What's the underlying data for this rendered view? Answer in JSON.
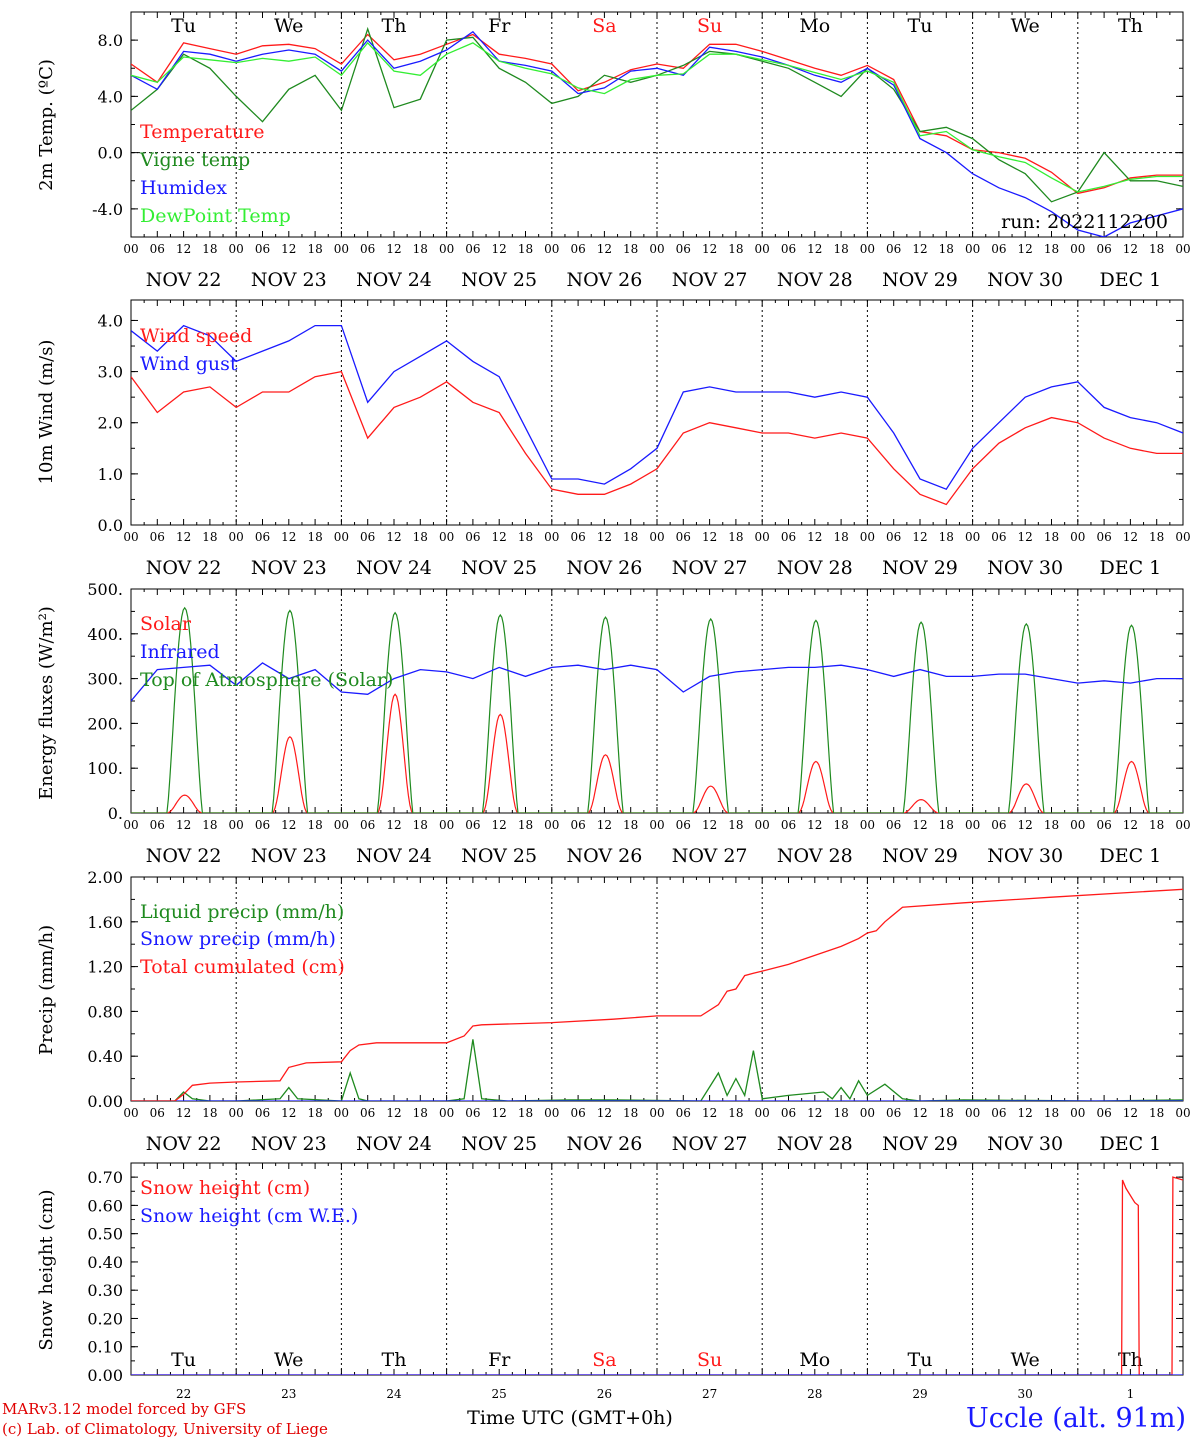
{
  "days": {
    "weekdays": [
      "Tu",
      "We",
      "Th",
      "Fr",
      "Sa",
      "Su",
      "Mo",
      "Tu",
      "We",
      "Th"
    ],
    "weekend_flags": [
      false,
      false,
      false,
      false,
      true,
      true,
      false,
      false,
      false,
      false
    ],
    "dates": [
      "NOV 22",
      "NOV 23",
      "NOV 24",
      "NOV 25",
      "NOV 26",
      "NOV 27",
      "NOV 28",
      "NOV 29",
      "NOV 30",
      "DEC  1"
    ],
    "day_numbers": [
      "22",
      "23",
      "24",
      "25",
      "26",
      "27",
      "28",
      "29",
      "30",
      "1"
    ],
    "hour_labels": [
      "00",
      "06",
      "12",
      "18"
    ],
    "final_hour_label": "00"
  },
  "colors": {
    "red": "#ff1a1a",
    "green": "#1f8a1f",
    "blue": "#1a1aff",
    "lightgreen": "#33ee33"
  },
  "footer": {
    "xlabel": "Time UTC (GMT+0h)",
    "credit_line1": "MARv3.12 model forced by GFS",
    "credit_line2": "(c) Lab. of Climatology, University of Liege",
    "station": "Uccle (alt. 91m)"
  },
  "chart_data": [
    {
      "type": "line",
      "title": "",
      "ylabel": "2m Temp. (ºC)",
      "xlabel": "",
      "ylim": [
        -6.0,
        10.0
      ],
      "yticks": [
        -4.0,
        0.0,
        4.0,
        8.0
      ],
      "ytick_labels": [
        "-4.0",
        "0.0",
        "4.0",
        "8.0"
      ],
      "zero_line": true,
      "grid": "vertical dotted lines at day boundaries",
      "x_unit": "hours since 2022-11-22 00 UTC",
      "xlim": [
        0,
        240
      ],
      "annotation": "run: 2022112200",
      "legend_position": "left",
      "series": [
        {
          "name": "Temperature",
          "color": "red",
          "x": [
            0,
            6,
            12,
            18,
            24,
            30,
            36,
            42,
            48,
            54,
            60,
            66,
            72,
            78,
            84,
            90,
            96,
            102,
            108,
            114,
            120,
            126,
            132,
            138,
            144,
            150,
            156,
            162,
            168,
            174,
            180,
            186,
            192,
            198,
            204,
            210,
            216,
            222,
            228,
            234,
            240
          ],
          "y": [
            6.3,
            5.0,
            7.8,
            7.4,
            7.0,
            7.6,
            7.7,
            7.4,
            6.3,
            8.4,
            6.6,
            7.0,
            7.7,
            8.4,
            7.0,
            6.7,
            6.3,
            4.4,
            5.0,
            5.9,
            6.3,
            6.0,
            7.7,
            7.7,
            7.2,
            6.6,
            6.0,
            5.5,
            6.2,
            5.2,
            1.5,
            1.2,
            0.2,
            0.0,
            -0.4,
            -1.4,
            -2.9,
            -2.5,
            -1.8,
            -1.6,
            -1.6
          ]
        },
        {
          "name": "Vigne temp",
          "color": "green",
          "x": [
            0,
            6,
            12,
            18,
            24,
            30,
            36,
            42,
            48,
            54,
            60,
            66,
            72,
            78,
            84,
            90,
            96,
            102,
            108,
            114,
            120,
            126,
            132,
            138,
            144,
            150,
            156,
            162,
            168,
            174,
            180,
            186,
            192,
            198,
            204,
            210,
            216,
            222,
            228,
            234,
            240
          ],
          "y": [
            3.0,
            4.5,
            7.0,
            6.0,
            4.0,
            2.2,
            4.5,
            5.5,
            3.0,
            8.8,
            3.2,
            3.8,
            8.0,
            8.2,
            6.0,
            5.0,
            3.5,
            4.0,
            5.5,
            5.0,
            5.5,
            6.2,
            7.2,
            7.0,
            6.5,
            6.0,
            5.0,
            4.0,
            6.0,
            4.5,
            1.5,
            1.8,
            1.0,
            -0.5,
            -1.5,
            -3.5,
            -2.8,
            0.0,
            -2.0,
            -2.0,
            -2.4
          ]
        },
        {
          "name": "Humidex",
          "color": "blue",
          "x": [
            0,
            6,
            12,
            18,
            24,
            30,
            36,
            42,
            48,
            54,
            60,
            66,
            72,
            78,
            84,
            90,
            96,
            102,
            108,
            114,
            120,
            126,
            132,
            138,
            144,
            150,
            156,
            162,
            168,
            174,
            180,
            186,
            192,
            198,
            204,
            210,
            216,
            222,
            228,
            234,
            240
          ],
          "y": [
            5.5,
            4.5,
            7.2,
            7.0,
            6.5,
            7.0,
            7.3,
            7.0,
            5.8,
            8.0,
            6.0,
            6.5,
            7.3,
            8.6,
            6.5,
            6.2,
            5.8,
            4.2,
            4.6,
            5.8,
            6.0,
            5.5,
            7.5,
            7.2,
            6.8,
            6.2,
            5.5,
            5.0,
            6.0,
            4.8,
            1.0,
            0.0,
            -1.5,
            -2.5,
            -3.2,
            -4.2,
            -5.5,
            -6.0,
            -5.0,
            -4.5,
            -4.0
          ]
        },
        {
          "name": "DewPoint Temp",
          "color": "lightgreen",
          "x": [
            0,
            6,
            12,
            18,
            24,
            30,
            36,
            42,
            48,
            54,
            60,
            66,
            72,
            78,
            84,
            90,
            96,
            102,
            108,
            114,
            120,
            126,
            132,
            138,
            144,
            150,
            156,
            162,
            168,
            174,
            180,
            186,
            192,
            198,
            204,
            210,
            216,
            222,
            228,
            234,
            240
          ],
          "y": [
            5.5,
            5.0,
            6.8,
            6.6,
            6.4,
            6.7,
            6.5,
            6.8,
            5.5,
            7.8,
            5.8,
            5.5,
            7.0,
            7.8,
            6.5,
            6.0,
            5.6,
            4.6,
            4.2,
            5.2,
            5.5,
            5.6,
            7.0,
            7.0,
            6.6,
            6.2,
            5.7,
            5.2,
            5.8,
            5.0,
            1.2,
            1.5,
            0.2,
            -0.3,
            -0.7,
            -1.8,
            -2.8,
            -2.4,
            -1.9,
            -1.7,
            -1.7
          ]
        }
      ]
    },
    {
      "type": "line",
      "title": "",
      "ylabel": "10m Wind (m/s)",
      "xlabel": "",
      "ylim": [
        0.0,
        4.4
      ],
      "yticks": [
        0.0,
        1.0,
        2.0,
        3.0,
        4.0
      ],
      "ytick_labels": [
        "0.0",
        "1.0",
        "2.0",
        "3.0",
        "4.0"
      ],
      "grid": "vertical dotted lines at day boundaries",
      "x_unit": "hours since 2022-11-22 00 UTC",
      "xlim": [
        0,
        240
      ],
      "legend_position": "left",
      "series": [
        {
          "name": "Wind speed",
          "color": "red",
          "x": [
            0,
            6,
            12,
            18,
            24,
            30,
            36,
            42,
            48,
            54,
            60,
            66,
            72,
            78,
            84,
            90,
            96,
            102,
            108,
            114,
            120,
            126,
            132,
            138,
            144,
            150,
            156,
            162,
            168,
            174,
            180,
            186,
            192,
            198,
            204,
            210,
            216,
            222,
            228,
            234,
            240
          ],
          "y": [
            2.9,
            2.2,
            2.6,
            2.7,
            2.3,
            2.6,
            2.6,
            2.9,
            3.0,
            1.7,
            2.3,
            2.5,
            2.8,
            2.4,
            2.2,
            1.4,
            0.7,
            0.6,
            0.6,
            0.8,
            1.1,
            1.8,
            2.0,
            1.9,
            1.8,
            1.8,
            1.7,
            1.8,
            1.7,
            1.1,
            0.6,
            0.4,
            1.1,
            1.6,
            1.9,
            2.1,
            2.0,
            1.7,
            1.5,
            1.4,
            1.4
          ]
        },
        {
          "name": "Wind gust",
          "color": "blue",
          "x": [
            0,
            6,
            12,
            18,
            24,
            30,
            36,
            42,
            48,
            54,
            60,
            66,
            72,
            78,
            84,
            90,
            96,
            102,
            108,
            114,
            120,
            126,
            132,
            138,
            144,
            150,
            156,
            162,
            168,
            174,
            180,
            186,
            192,
            198,
            204,
            210,
            216,
            222,
            228,
            234,
            240
          ],
          "y": [
            3.8,
            3.4,
            3.9,
            3.7,
            3.2,
            3.4,
            3.6,
            3.9,
            3.9,
            2.4,
            3.0,
            3.3,
            3.6,
            3.2,
            2.9,
            1.9,
            0.9,
            0.9,
            0.8,
            1.1,
            1.5,
            2.6,
            2.7,
            2.6,
            2.6,
            2.6,
            2.5,
            2.6,
            2.5,
            1.8,
            0.9,
            0.7,
            1.5,
            2.0,
            2.5,
            2.7,
            2.8,
            2.3,
            2.1,
            2.0,
            1.8
          ]
        }
      ]
    },
    {
      "type": "line",
      "title": "",
      "ylabel": "Energy fluxes (W/m²)",
      "xlabel": "",
      "ylim": [
        0,
        500
      ],
      "yticks": [
        0,
        100,
        200,
        300,
        400,
        500
      ],
      "ytick_labels": [
        "0.",
        "100.",
        "200.",
        "300.",
        "400.",
        "500."
      ],
      "grid": "vertical dotted lines at day boundaries",
      "x_unit": "hours since 2022-11-22 00 UTC",
      "xlim": [
        0,
        240
      ],
      "legend_position": "left",
      "solar_peaks_by_day": [
        {
          "name": "Solar",
          "color": "red",
          "values": [
            40,
            170,
            265,
            220,
            130,
            60,
            115,
            30,
            65,
            115
          ]
        },
        {
          "name": "Top of Atmosphere (Solar)",
          "color": "green",
          "values": [
            458,
            452,
            447,
            442,
            437,
            433,
            430,
            426,
            422,
            419
          ]
        }
      ],
      "series": [
        {
          "name": "Infrared",
          "color": "blue",
          "x": [
            0,
            6,
            12,
            18,
            24,
            30,
            36,
            42,
            48,
            54,
            60,
            66,
            72,
            78,
            84,
            90,
            96,
            102,
            108,
            114,
            120,
            126,
            132,
            138,
            144,
            150,
            156,
            162,
            168,
            174,
            180,
            186,
            192,
            198,
            204,
            210,
            216,
            222,
            228,
            234,
            240
          ],
          "y": [
            250,
            320,
            325,
            330,
            285,
            335,
            300,
            320,
            270,
            265,
            300,
            320,
            315,
            300,
            325,
            305,
            325,
            330,
            320,
            330,
            320,
            270,
            305,
            315,
            320,
            325,
            325,
            330,
            320,
            305,
            320,
            305,
            305,
            310,
            310,
            300,
            290,
            295,
            290,
            300,
            300
          ]
        }
      ]
    },
    {
      "type": "line",
      "title": "",
      "ylabel": "Precip (mm/h)",
      "xlabel": "",
      "ylim": [
        0.0,
        2.0
      ],
      "yticks": [
        0.0,
        0.4,
        0.8,
        1.2,
        1.6,
        2.0
      ],
      "ytick_labels": [
        "0.00",
        "0.40",
        "0.80",
        "1.20",
        "1.60",
        "2.00"
      ],
      "grid": "vertical dotted lines at day boundaries",
      "x_unit": "hours since 2022-11-22 00 UTC",
      "xlim": [
        0,
        240
      ],
      "legend_position": "left",
      "series": [
        {
          "name": "Liquid precip (mm/h)",
          "color": "green",
          "x": [
            0,
            10,
            12,
            14,
            18,
            24,
            34,
            36,
            38,
            48,
            50,
            52,
            54,
            60,
            72,
            76,
            78,
            80,
            86,
            100,
            110,
            130,
            134,
            136,
            138,
            140,
            142,
            144,
            150,
            158,
            160,
            162,
            164,
            166,
            168,
            172,
            176,
            180,
            190,
            220,
            240
          ],
          "y": [
            0,
            0,
            0.08,
            0.02,
            0,
            0,
            0.02,
            0.12,
            0.02,
            0,
            0.25,
            0.02,
            0,
            0,
            0,
            0.02,
            0.55,
            0.02,
            0,
            0.01,
            0.01,
            0,
            0.25,
            0.05,
            0.2,
            0.05,
            0.45,
            0.02,
            0.05,
            0.08,
            0.02,
            0.12,
            0.02,
            0.18,
            0.05,
            0.15,
            0.02,
            0,
            0.01,
            0,
            0.01
          ]
        },
        {
          "name": "Snow precip (mm/h)",
          "color": "blue",
          "x": [
            0,
            240
          ],
          "y": [
            0,
            0
          ]
        },
        {
          "name": "Total cumulated (cm)",
          "color": "red",
          "x": [
            0,
            10,
            12,
            14,
            18,
            24,
            34,
            36,
            40,
            48,
            50,
            52,
            56,
            72,
            76,
            78,
            80,
            96,
            110,
            120,
            130,
            134,
            136,
            138,
            140,
            142,
            144,
            150,
            156,
            162,
            166,
            168,
            170,
            172,
            176,
            190,
            210,
            240
          ],
          "y": [
            0,
            0,
            0.06,
            0.14,
            0.16,
            0.17,
            0.18,
            0.3,
            0.34,
            0.35,
            0.45,
            0.5,
            0.52,
            0.52,
            0.58,
            0.67,
            0.68,
            0.7,
            0.73,
            0.76,
            0.76,
            0.86,
            0.98,
            1.0,
            1.12,
            1.14,
            1.16,
            1.22,
            1.3,
            1.38,
            1.45,
            1.5,
            1.52,
            1.6,
            1.73,
            1.77,
            1.82,
            1.89
          ]
        }
      ]
    },
    {
      "type": "line",
      "title": "",
      "ylabel": "Snow height (cm)",
      "xlabel": "",
      "ylim": [
        0.0,
        0.75
      ],
      "yticks": [
        0.0,
        0.1,
        0.2,
        0.3,
        0.4,
        0.5,
        0.6,
        0.7
      ],
      "ytick_labels": [
        "0.00",
        "0.10",
        "0.20",
        "0.30",
        "0.40",
        "0.50",
        "0.60",
        "0.70"
      ],
      "grid": "vertical dotted lines at day boundaries",
      "x_unit": "hours since 2022-11-22 00 UTC",
      "xlim": [
        0,
        240
      ],
      "legend_position": "left",
      "series": [
        {
          "name": "Snow height (cm)",
          "color": "red",
          "x": [
            0,
            226,
            226.2,
            227,
            229,
            229.8,
            230,
            237.5,
            237.7,
            240
          ],
          "y": [
            0,
            0,
            0.69,
            0.66,
            0.61,
            0.6,
            0,
            0,
            0.7,
            0.69
          ]
        },
        {
          "name": "Snow height (cm W.E.)",
          "color": "blue",
          "x": [
            0,
            240
          ],
          "y": [
            0,
            0
          ]
        }
      ]
    }
  ]
}
